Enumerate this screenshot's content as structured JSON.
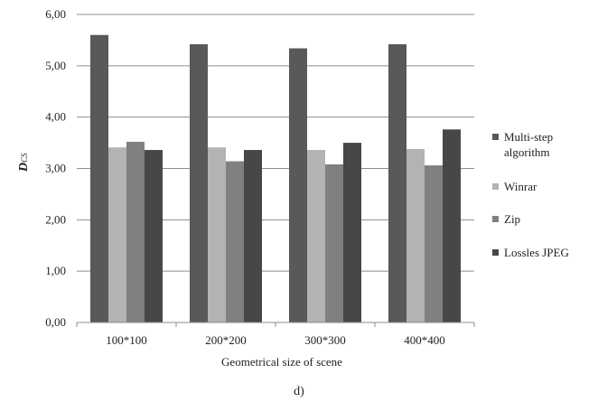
{
  "chart_data": {
    "type": "bar",
    "categories": [
      "100*100",
      "200*200",
      "300*300",
      "400*400"
    ],
    "series": [
      {
        "name": "Multi-step algorithm",
        "name_lines": [
          "Multi-step",
          "algorithm"
        ],
        "color": "#595959",
        "values": [
          5.6,
          5.42,
          5.34,
          5.42
        ]
      },
      {
        "name": "Winrar",
        "name_lines": [
          "Winrar"
        ],
        "color": "#b3b3b3",
        "values": [
          3.41,
          3.41,
          3.36,
          3.38
        ]
      },
      {
        "name": "Zip",
        "name_lines": [
          "Zip"
        ],
        "color": "#808080",
        "values": [
          3.52,
          3.14,
          3.08,
          3.06
        ]
      },
      {
        "name": "Lossles JPEG",
        "name_lines": [
          "Lossles JPEG"
        ],
        "color": "#474747",
        "values": [
          3.36,
          3.36,
          3.5,
          3.76
        ]
      }
    ],
    "ylim": [
      0,
      6
    ],
    "y_ticks": [
      "0,00",
      "1,00",
      "2,00",
      "3,00",
      "4,00",
      "5,00",
      "6,00"
    ],
    "ylabel_main": "D",
    "ylabel_sub": "CS",
    "xlabel": "Geometrical  size of scene",
    "grid": true,
    "legend_position": "right"
  },
  "caption": "d)"
}
